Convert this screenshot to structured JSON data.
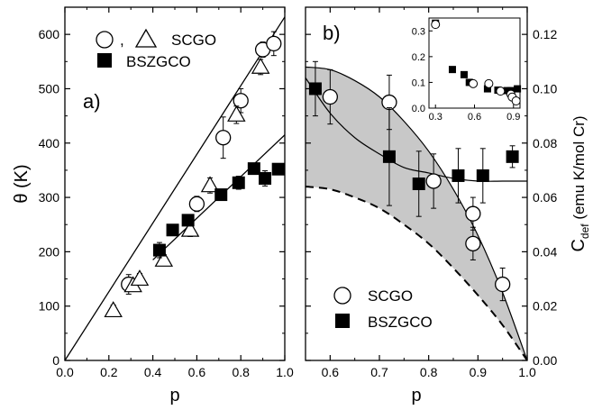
{
  "chart_data": [
    {
      "panel": "a)",
      "type": "scatter",
      "xlabel": "p",
      "ylabel": "θ (K)",
      "xlim": [
        0.0,
        1.0
      ],
      "ylim": [
        0,
        650
      ],
      "xticks": [
        "0.0",
        "0.2",
        "0.4",
        "0.6",
        "0.8",
        "1.0"
      ],
      "yticks": [
        "0",
        "100",
        "200",
        "300",
        "400",
        "500",
        "600"
      ],
      "legend": {
        "line1": "○ , △  SCGO",
        "line2": "BSZGCO",
        "placement": "top-left"
      },
      "series": [
        {
          "name": "SCGO",
          "marker": "circle",
          "points": [
            {
              "x": 0.29,
              "y": 140,
              "err": 18
            },
            {
              "x": 0.6,
              "y": 288,
              "err": 14
            },
            {
              "x": 0.72,
              "y": 410,
              "err": 38
            },
            {
              "x": 0.8,
              "y": 478,
              "err": 22
            },
            {
              "x": 0.9,
              "y": 572,
              "err": 14
            },
            {
              "x": 0.95,
              "y": 583,
              "err": 22
            }
          ]
        },
        {
          "name": "SCGO",
          "marker": "triangle",
          "points": [
            {
              "x": 0.22,
              "y": 92,
              "err": 10
            },
            {
              "x": 0.31,
              "y": 138,
              "err": 10
            },
            {
              "x": 0.34,
              "y": 150,
              "err": 10
            },
            {
              "x": 0.45,
              "y": 185,
              "err": 10
            },
            {
              "x": 0.57,
              "y": 240,
              "err": 12
            },
            {
              "x": 0.66,
              "y": 322,
              "err": 14
            },
            {
              "x": 0.78,
              "y": 452,
              "err": 16
            },
            {
              "x": 0.89,
              "y": 540,
              "err": 14
            }
          ]
        },
        {
          "name": "BSZGCO",
          "marker": "square",
          "points": [
            {
              "x": 0.43,
              "y": 203,
              "err": 14
            },
            {
              "x": 0.49,
              "y": 240,
              "err": 10
            },
            {
              "x": 0.56,
              "y": 258,
              "err": 10
            },
            {
              "x": 0.71,
              "y": 305,
              "err": 8
            },
            {
              "x": 0.79,
              "y": 327,
              "err": 12
            },
            {
              "x": 0.86,
              "y": 353,
              "err": 10
            },
            {
              "x": 0.91,
              "y": 335,
              "err": 14
            },
            {
              "x": 0.97,
              "y": 352,
              "err": 10
            }
          ]
        }
      ],
      "fit_lines": [
        {
          "x": [
            0.0,
            1.0
          ],
          "y": [
            0,
            632
          ]
        },
        {
          "x": [
            0.4,
            1.0
          ],
          "y": [
            185,
            415
          ]
        }
      ]
    },
    {
      "panel": "b)",
      "type": "scatter",
      "xlabel": "p",
      "ylabel": "C",
      "ylabel_sub": "def",
      "ylabel_rest": " (emu K/mol Cr)",
      "xlim": [
        0.55,
        1.0
      ],
      "ylim": [
        0.0,
        0.13
      ],
      "xticks": [
        "0.6",
        "0.7",
        "0.8",
        "0.9",
        "1.0"
      ],
      "yticks": [
        "0.00",
        "0.02",
        "0.04",
        "0.06",
        "0.08",
        "0.10",
        "0.12"
      ],
      "legend": {
        "entries": [
          "SCGO",
          "BSZGCO"
        ],
        "placement": "bottom-left"
      },
      "series": [
        {
          "name": "SCGO",
          "marker": "circle",
          "points": [
            {
              "x": 0.6,
              "y": 0.097,
              "err": 0.01
            },
            {
              "x": 0.72,
              "y": 0.095,
              "err": 0.01
            },
            {
              "x": 0.81,
              "y": 0.066,
              "err": 0.01
            },
            {
              "x": 0.89,
              "y": 0.054,
              "err": 0.006
            },
            {
              "x": 0.89,
              "y": 0.043,
              "err": 0.006
            },
            {
              "x": 0.95,
              "y": 0.028,
              "err": 0.006
            }
          ]
        },
        {
          "name": "BSZGCO",
          "marker": "square",
          "points": [
            {
              "x": 0.57,
              "y": 0.1,
              "err": 0.01
            },
            {
              "x": 0.72,
              "y": 0.075,
              "err": 0.018
            },
            {
              "x": 0.78,
              "y": 0.065,
              "err": 0.012
            },
            {
              "x": 0.86,
              "y": 0.068,
              "err": 0.01
            },
            {
              "x": 0.91,
              "y": 0.068,
              "err": 0.01
            },
            {
              "x": 0.97,
              "y": 0.075,
              "err": 0.004
            }
          ]
        }
      ],
      "shaded_band_upper": {
        "x": [
          0.55,
          0.6,
          0.65,
          0.7,
          0.75,
          0.8,
          0.85,
          0.9,
          0.95,
          1.0
        ],
        "y": [
          0.108,
          0.107,
          0.103,
          0.097,
          0.088,
          0.077,
          0.063,
          0.046,
          0.025,
          0.0
        ]
      },
      "dashed_curve": {
        "x": [
          0.55,
          0.6,
          0.65,
          0.7,
          0.75,
          0.8,
          0.85,
          0.9,
          0.95,
          1.0
        ],
        "y": [
          0.064,
          0.063,
          0.06,
          0.056,
          0.05,
          0.043,
          0.034,
          0.024,
          0.013,
          0.0
        ]
      },
      "solid_fit": {
        "x": [
          0.55,
          0.6,
          0.65,
          0.7,
          0.75,
          0.8,
          0.85,
          0.9,
          0.95,
          1.0
        ],
        "y": [
          0.104,
          0.091,
          0.082,
          0.076,
          0.071,
          0.069,
          0.067,
          0.066,
          0.066,
          0.066
        ]
      },
      "inset": {
        "xlim": [
          0.25,
          0.95
        ],
        "ylim": [
          0.0,
          0.35
        ],
        "xticks": [
          "0.3",
          "0.6",
          "0.9"
        ],
        "yticks": [
          "0.0",
          "0.1",
          "0.2",
          "0.3"
        ],
        "squares": [
          {
            "x": 0.3,
            "y": 0.33
          },
          {
            "x": 0.43,
            "y": 0.15
          },
          {
            "x": 0.52,
            "y": 0.13
          },
          {
            "x": 0.56,
            "y": 0.1
          },
          {
            "x": 0.7,
            "y": 0.075
          },
          {
            "x": 0.78,
            "y": 0.07
          },
          {
            "x": 0.85,
            "y": 0.068
          },
          {
            "x": 0.88,
            "y": 0.068
          },
          {
            "x": 0.93,
            "y": 0.075
          }
        ],
        "circles": [
          {
            "x": 0.3,
            "y": 0.325
          },
          {
            "x": 0.59,
            "y": 0.095
          },
          {
            "x": 0.71,
            "y": 0.095
          },
          {
            "x": 0.8,
            "y": 0.066
          },
          {
            "x": 0.88,
            "y": 0.054
          },
          {
            "x": 0.89,
            "y": 0.043
          },
          {
            "x": 0.92,
            "y": 0.028
          }
        ]
      }
    }
  ]
}
